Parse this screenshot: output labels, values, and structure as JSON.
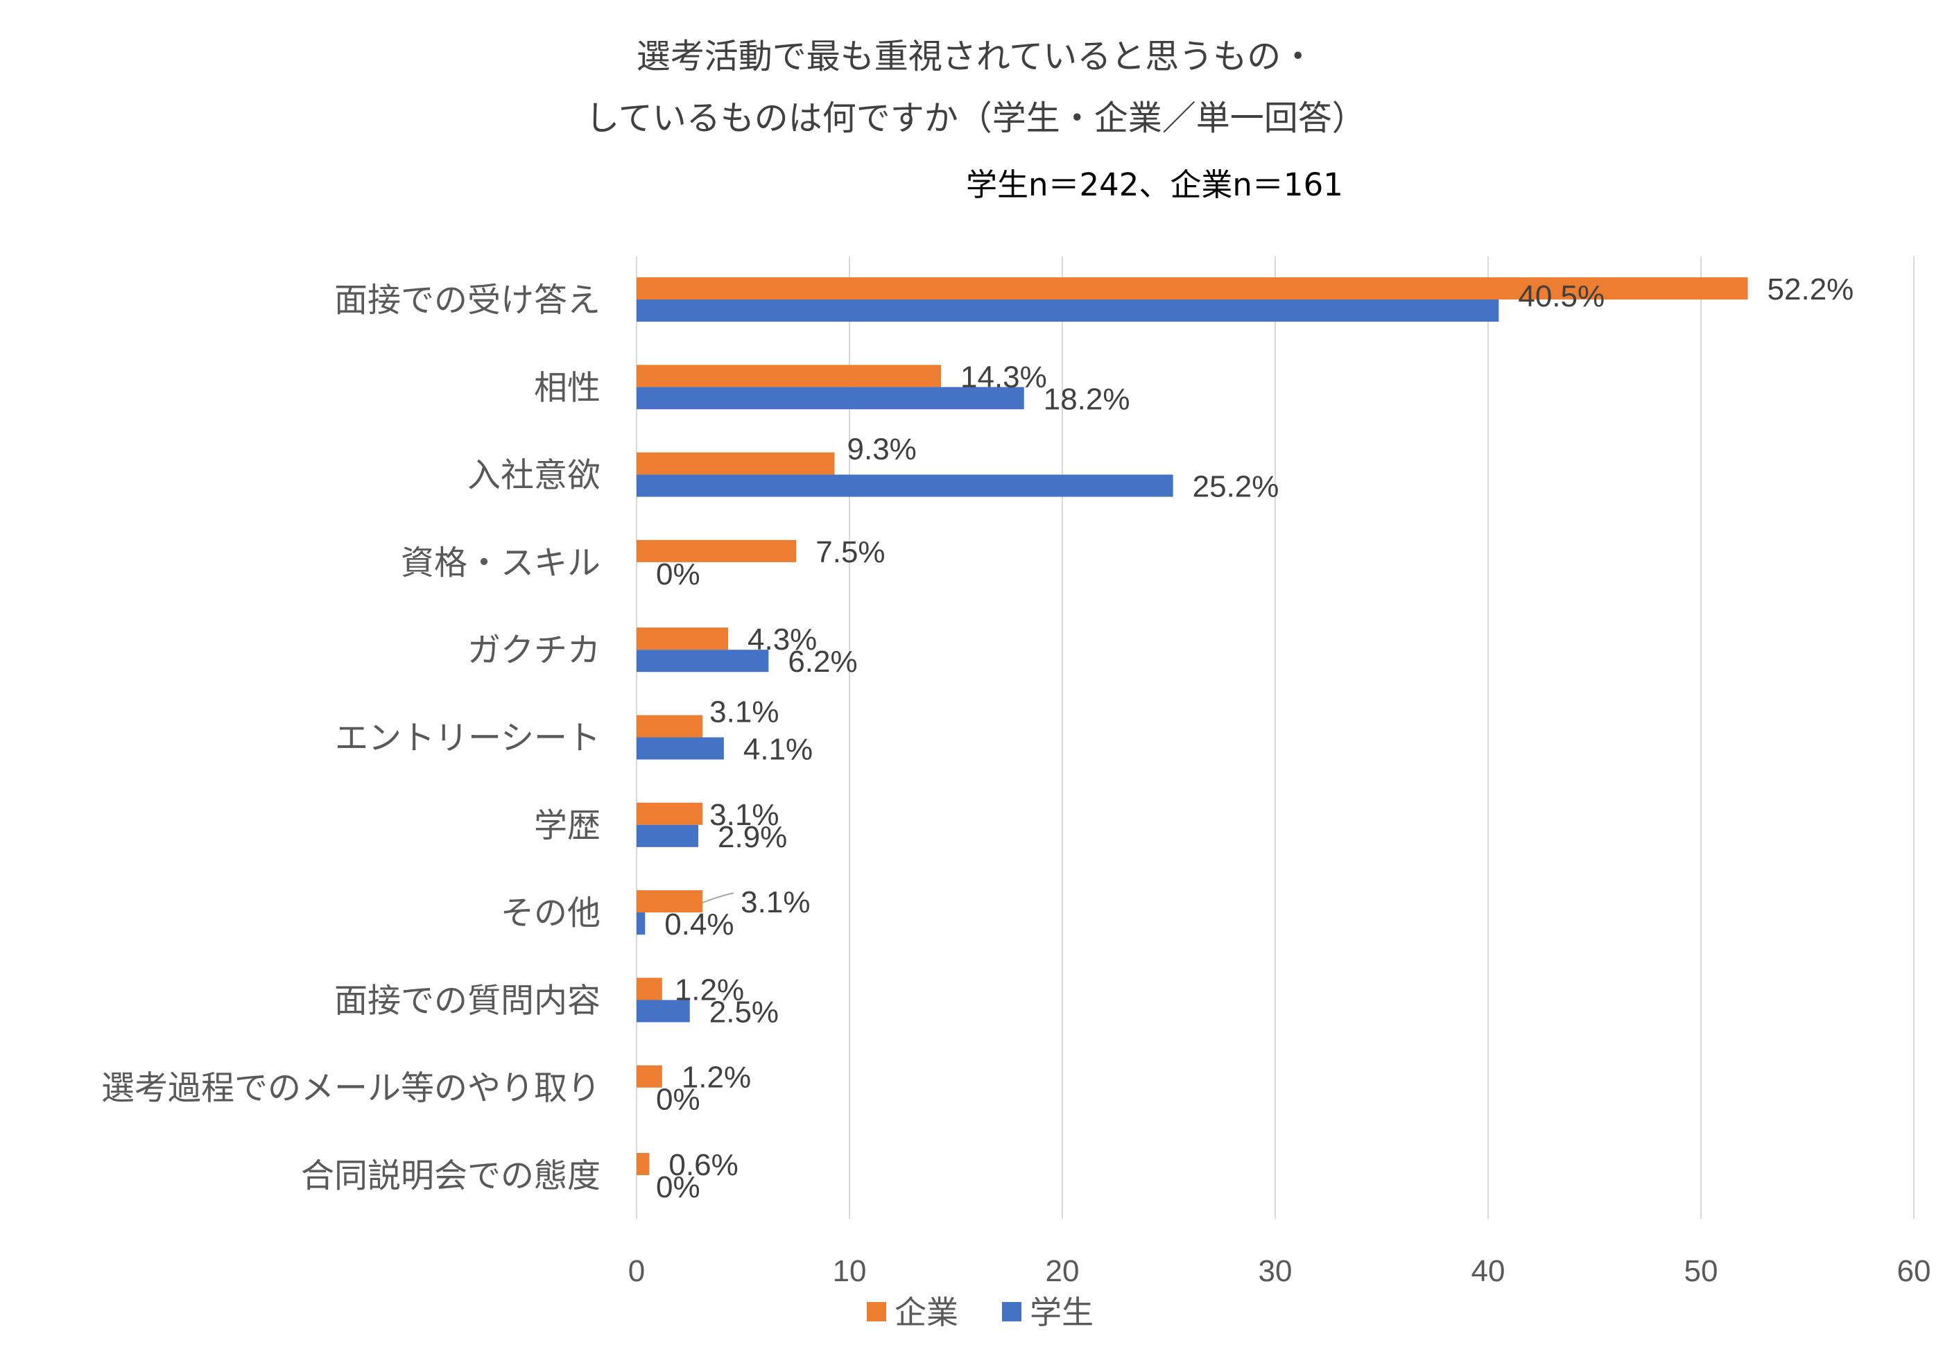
{
  "chart_data": {
    "type": "bar",
    "orientation": "horizontal",
    "title_line1": "選考活動で最も重視されていると思うもの・",
    "title_line2": "しているものは何ですか（学生・企業／単一回答）",
    "subtitle": "学生n＝242、企業n＝161",
    "categories": [
      "面接での受け答え",
      "相性",
      "入社意欲",
      "資格・スキル",
      "ガクチカ",
      "エントリーシート",
      "学歴",
      "その他",
      "面接での質問内容",
      "選考過程でのメール等のやり取り",
      "合同説明会での態度"
    ],
    "series": [
      {
        "name": "企業",
        "color": "#ed7d31",
        "values": [
          52.2,
          14.3,
          9.3,
          7.5,
          4.3,
          3.1,
          3.1,
          3.1,
          1.2,
          1.2,
          0.6
        ],
        "labels": [
          "52.2%",
          "14.3%",
          "9.3%",
          "7.5%",
          "4.3%",
          "3.1%",
          "3.1%",
          "3.1%",
          "1.2%",
          "1.2%",
          "0.6%"
        ]
      },
      {
        "name": "学生",
        "color": "#4472c4",
        "values": [
          40.5,
          18.2,
          25.2,
          0,
          6.2,
          4.1,
          2.9,
          0.4,
          2.5,
          0,
          0
        ],
        "labels": [
          "40.5%",
          "18.2%",
          "25.2%",
          "0%",
          "6.2%",
          "4.1%",
          "2.9%",
          "0.4%",
          "2.5%",
          "0%",
          "0%"
        ]
      }
    ],
    "xlim": [
      0,
      60
    ],
    "xticks": [
      "0",
      "10",
      "20",
      "30",
      "40",
      "50",
      "60"
    ],
    "grid": true,
    "legend_position": "bottom"
  }
}
